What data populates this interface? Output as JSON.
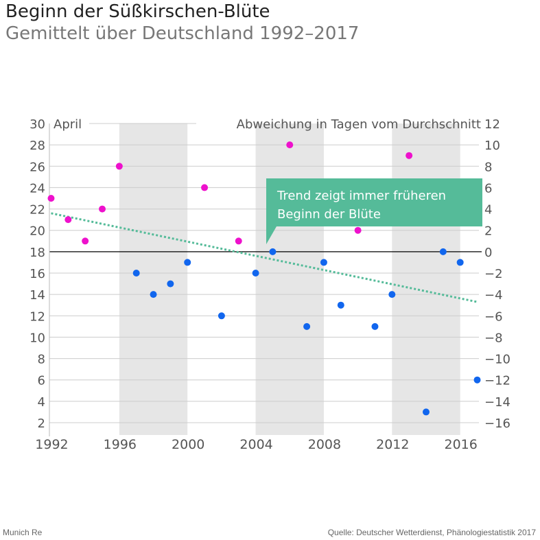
{
  "chart_data": {
    "type": "scatter",
    "title": "Beginn der Süßkirschen-Blüte",
    "subtitle": "Gemittelt über Deutschland 1992–2017",
    "left_axis_label": "April",
    "right_axis_label": "Abweichung in Tagen vom Durchschnitt",
    "baseline": 18,
    "ylim": [
      2,
      30
    ],
    "xlim": [
      1991.9,
      2017.1
    ],
    "left_ticks": [
      2,
      4,
      6,
      8,
      10,
      12,
      14,
      16,
      18,
      20,
      22,
      24,
      26,
      28,
      30
    ],
    "right_ticks": [
      {
        "label": "12",
        "value": 30
      },
      {
        "label": "10",
        "value": 28
      },
      {
        "label": "8",
        "value": 26
      },
      {
        "label": "6",
        "value": 24
      },
      {
        "label": "4",
        "value": 22
      },
      {
        "label": "2",
        "value": 20
      },
      {
        "label": "0",
        "value": 18
      },
      {
        "label": "−2",
        "value": 16
      },
      {
        "label": "−4",
        "value": 14
      },
      {
        "label": "−6",
        "value": 12
      },
      {
        "label": "−8",
        "value": 10
      },
      {
        "label": "−10",
        "value": 8
      },
      {
        "label": "−12",
        "value": 6
      },
      {
        "label": "−14",
        "value": 4
      },
      {
        "label": "−16",
        "value": 2
      }
    ],
    "x_ticks": [
      1992,
      1996,
      2000,
      2004,
      2008,
      2012,
      2016
    ],
    "shaded_bands": [
      [
        1996,
        2000
      ],
      [
        2004,
        2008
      ],
      [
        2012,
        2016
      ]
    ],
    "points": [
      {
        "year": 1992,
        "day": 23
      },
      {
        "year": 1993,
        "day": 21
      },
      {
        "year": 1994,
        "day": 19
      },
      {
        "year": 1995,
        "day": 22
      },
      {
        "year": 1996,
        "day": 26
      },
      {
        "year": 1997,
        "day": 16
      },
      {
        "year": 1998,
        "day": 14
      },
      {
        "year": 1999,
        "day": 15
      },
      {
        "year": 2000,
        "day": 17
      },
      {
        "year": 2001,
        "day": 24
      },
      {
        "year": 2002,
        "day": 12
      },
      {
        "year": 2003,
        "day": 19
      },
      {
        "year": 2004,
        "day": 16
      },
      {
        "year": 2005,
        "day": 18
      },
      {
        "year": 2006,
        "day": 28
      },
      {
        "year": 2007,
        "day": 11
      },
      {
        "year": 2008,
        "day": 17
      },
      {
        "year": 2009,
        "day": 13
      },
      {
        "year": 2010,
        "day": 20
      },
      {
        "year": 2011,
        "day": 11
      },
      {
        "year": 2012,
        "day": 14
      },
      {
        "year": 2013,
        "day": 27
      },
      {
        "year": 2014,
        "day": 3
      },
      {
        "year": 2015,
        "day": 18
      },
      {
        "year": 2016,
        "day": 17
      },
      {
        "year": 2017,
        "day": 6
      }
    ],
    "trend": {
      "start": {
        "year": 1992,
        "day": 21.6
      },
      "end": {
        "year": 2017,
        "day": 13.3
      }
    },
    "callout": {
      "line1": "Trend zeigt immer früheren",
      "line2": "Beginn der Blüte"
    }
  },
  "colors": {
    "late": "#ee11cc",
    "early": "#1166ee",
    "trend": "#55bb99",
    "band": "#e6e6e6",
    "grid": "#cccccc"
  },
  "footer": {
    "left": "Munich Re",
    "right": "Quelle: Deutscher Wetterdienst, Phänologiestatistik 2017"
  }
}
